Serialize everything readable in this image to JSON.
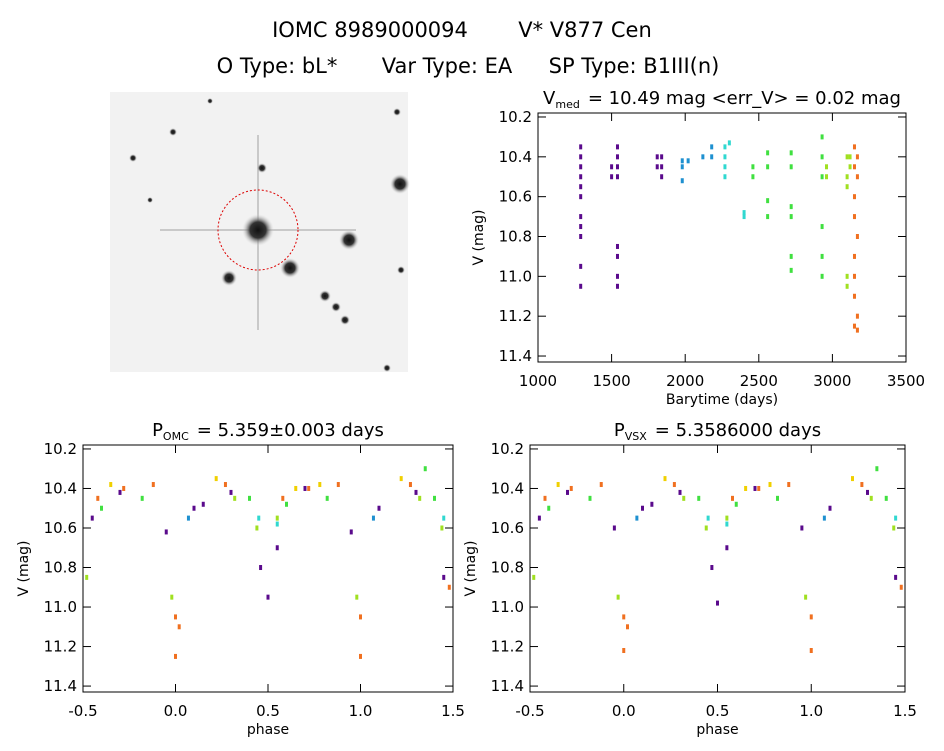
{
  "header": {
    "line1": [
      "IOMC 8989000094",
      "V* V877 Cen"
    ],
    "line2": [
      "O Type: bL*",
      "Var Type: EA",
      "SP Type: B1III(n)"
    ]
  },
  "chart_data": [
    {
      "type": "scatter",
      "title": [
        "V",
        "med",
        "= 10.49 mag  <err_V> = 0.02 mag"
      ],
      "x_label": "Barytime (days)",
      "y_label": "V (mag)",
      "xlim": [
        1000,
        3500
      ],
      "xticks": [
        1000,
        1500,
        2000,
        2500,
        3000,
        3500
      ],
      "ylim": [
        11.43,
        10.18
      ],
      "yticks": [
        10.2,
        10.4,
        10.6,
        10.8,
        {
          "value": 11,
          "label": "11.0"
        },
        11.2,
        11.4
      ],
      "series": [
        {
          "color": "#5a0a8c",
          "x": [
            1290,
            1290,
            1290,
            1290,
            1290,
            1290,
            1290,
            1290,
            1290,
            1290,
            1290,
            1540,
            1540,
            1540,
            1540,
            1540,
            1540,
            1540,
            1540,
            1500,
            1500,
            1810,
            1810,
            1840,
            1840,
            1840
          ],
          "y": [
            10.35,
            10.4,
            10.45,
            10.5,
            10.55,
            10.6,
            10.7,
            10.75,
            10.8,
            10.95,
            11.05,
            10.35,
            10.4,
            10.45,
            10.5,
            10.85,
            10.9,
            11.0,
            11.05,
            10.45,
            10.5,
            10.4,
            10.45,
            10.4,
            10.45,
            10.5
          ]
        },
        {
          "color": "#1e90d0",
          "x": [
            1980,
            1980,
            1980,
            2020,
            2120,
            2180,
            2180
          ],
          "y": [
            10.42,
            10.45,
            10.52,
            10.42,
            10.4,
            10.35,
            10.4
          ]
        },
        {
          "color": "#30d8d0",
          "x": [
            2270,
            2270,
            2270,
            2270,
            2300,
            2400,
            2400
          ],
          "y": [
            10.35,
            10.4,
            10.45,
            10.5,
            10.33,
            10.68,
            10.7
          ]
        },
        {
          "color": "#40e040",
          "x": [
            2460,
            2460,
            2560,
            2560,
            2560,
            2560,
            2720,
            2720,
            2720,
            2720,
            2720,
            2720,
            2930,
            2930,
            2930,
            2930,
            2930,
            2930
          ],
          "y": [
            10.45,
            10.5,
            10.38,
            10.45,
            10.62,
            10.7,
            10.38,
            10.45,
            10.65,
            10.7,
            10.9,
            10.97,
            10.3,
            10.4,
            10.5,
            10.75,
            10.9,
            11.0
          ]
        },
        {
          "color": "#a0e020",
          "x": [
            2960,
            2960,
            3100,
            3100,
            3100,
            3100,
            3100,
            3120,
            3120
          ],
          "y": [
            10.45,
            10.5,
            10.4,
            10.5,
            10.55,
            11.0,
            11.05,
            10.4,
            10.45
          ]
        },
        {
          "color": "#f07020",
          "x": [
            3150,
            3150,
            3150,
            3150,
            3150,
            3150,
            3150,
            3150,
            3170,
            3170,
            3170,
            3170,
            3170
          ],
          "y": [
            10.35,
            10.45,
            10.6,
            10.7,
            10.9,
            11.0,
            11.1,
            11.25,
            10.4,
            10.5,
            10.8,
            11.2,
            11.27
          ]
        }
      ]
    },
    {
      "type": "scatter",
      "title": [
        "P",
        "OMC",
        "= 5.359±0.003 days"
      ],
      "x_label": "phase",
      "y_label": "V (mag)",
      "xlim": [
        -0.5,
        1.5
      ],
      "xticks": [
        -0.5,
        {
          "value": 0,
          "label": "0.0"
        },
        0.5,
        {
          "value": 1,
          "label": "1.0"
        },
        1.5
      ],
      "ylim": [
        11.43,
        10.18
      ],
      "yticks": [
        10.2,
        10.4,
        10.6,
        10.8,
        {
          "value": 11,
          "label": "11.0"
        },
        11.2,
        11.4
      ],
      "series": [
        {
          "color": "#5a0a8c",
          "x": [
            -0.45,
            -0.3,
            -0.05,
            0.1,
            0.15,
            0.3,
            0.46,
            0.5,
            0.55,
            0.7,
            0.95,
            1.1,
            1.3,
            1.45
          ],
          "y": [
            10.55,
            10.42,
            10.62,
            10.5,
            10.48,
            10.42,
            10.8,
            10.95,
            10.7,
            10.4,
            10.62,
            10.5,
            10.42,
            10.85
          ]
        },
        {
          "color": "#f07020",
          "x": [
            -0.42,
            -0.28,
            -0.12,
            0.0,
            0.0,
            0.02,
            0.27,
            0.58,
            0.72,
            0.88,
            1.0,
            1.0,
            1.27,
            1.48
          ],
          "y": [
            10.45,
            10.4,
            10.38,
            11.05,
            11.25,
            11.1,
            10.38,
            10.45,
            10.4,
            10.38,
            11.05,
            11.25,
            10.38,
            10.9
          ]
        },
        {
          "color": "#f0d000",
          "x": [
            -0.35,
            0.22,
            0.65,
            0.78,
            1.22
          ],
          "y": [
            10.38,
            10.35,
            10.4,
            10.38,
            10.35
          ]
        },
        {
          "color": "#a0e020",
          "x": [
            -0.48,
            -0.02,
            0.32,
            0.44,
            0.55,
            0.98,
            1.32,
            1.44
          ],
          "y": [
            10.85,
            10.95,
            10.45,
            10.6,
            10.55,
            10.95,
            10.45,
            10.6
          ]
        },
        {
          "color": "#40e040",
          "x": [
            -0.4,
            -0.18,
            0.4,
            0.6,
            0.82,
            1.4,
            1.35
          ],
          "y": [
            10.5,
            10.45,
            10.45,
            10.48,
            10.45,
            10.45,
            10.3
          ]
        },
        {
          "color": "#30d8d0",
          "x": [
            0.45,
            0.55,
            1.45
          ],
          "y": [
            10.55,
            10.58,
            10.55
          ]
        },
        {
          "color": "#1e90d0",
          "x": [
            0.07,
            1.07
          ],
          "y": [
            10.55,
            10.55
          ]
        }
      ]
    },
    {
      "type": "scatter",
      "title": [
        "P",
        "VSX",
        "= 5.3586000 days"
      ],
      "x_label": "phase",
      "y_label": "V (mag)",
      "xlim": [
        -0.5,
        1.5
      ],
      "xticks": [
        -0.5,
        {
          "value": 0,
          "label": "0.0"
        },
        0.5,
        {
          "value": 1,
          "label": "1.0"
        },
        1.5
      ],
      "ylim": [
        11.43,
        10.18
      ],
      "yticks": [
        10.2,
        10.4,
        10.6,
        10.8,
        {
          "value": 11,
          "label": "11.0"
        },
        11.2,
        11.4
      ],
      "series": [
        {
          "color": "#5a0a8c",
          "x": [
            -0.45,
            -0.3,
            -0.05,
            0.1,
            0.15,
            0.3,
            0.47,
            0.5,
            0.55,
            0.7,
            0.95,
            1.1,
            1.3,
            1.45
          ],
          "y": [
            10.55,
            10.42,
            10.6,
            10.5,
            10.48,
            10.42,
            10.8,
            10.98,
            10.7,
            10.4,
            10.6,
            10.5,
            10.42,
            10.85
          ]
        },
        {
          "color": "#f07020",
          "x": [
            -0.42,
            -0.28,
            -0.12,
            0.0,
            0.0,
            0.02,
            0.27,
            0.58,
            0.72,
            0.88,
            1.0,
            1.0,
            1.27,
            1.48
          ],
          "y": [
            10.45,
            10.4,
            10.38,
            11.05,
            11.22,
            11.1,
            10.38,
            10.45,
            10.4,
            10.38,
            11.05,
            11.22,
            10.38,
            10.9
          ]
        },
        {
          "color": "#f0d000",
          "x": [
            -0.35,
            0.22,
            0.65,
            0.78,
            1.22
          ],
          "y": [
            10.38,
            10.35,
            10.4,
            10.38,
            10.35
          ]
        },
        {
          "color": "#a0e020",
          "x": [
            -0.48,
            -0.03,
            0.32,
            0.44,
            0.55,
            0.97,
            1.32,
            1.44
          ],
          "y": [
            10.85,
            10.95,
            10.45,
            10.6,
            10.55,
            10.95,
            10.45,
            10.6
          ]
        },
        {
          "color": "#40e040",
          "x": [
            -0.4,
            -0.18,
            0.4,
            0.6,
            0.82,
            1.4,
            1.35
          ],
          "y": [
            10.5,
            10.45,
            10.45,
            10.48,
            10.45,
            10.45,
            10.3
          ]
        },
        {
          "color": "#30d8d0",
          "x": [
            0.45,
            0.55,
            1.45
          ],
          "y": [
            10.55,
            10.58,
            10.55
          ]
        },
        {
          "color": "#1e90d0",
          "x": [
            0.07,
            1.07
          ],
          "y": [
            10.55,
            10.55
          ]
        }
      ]
    }
  ]
}
